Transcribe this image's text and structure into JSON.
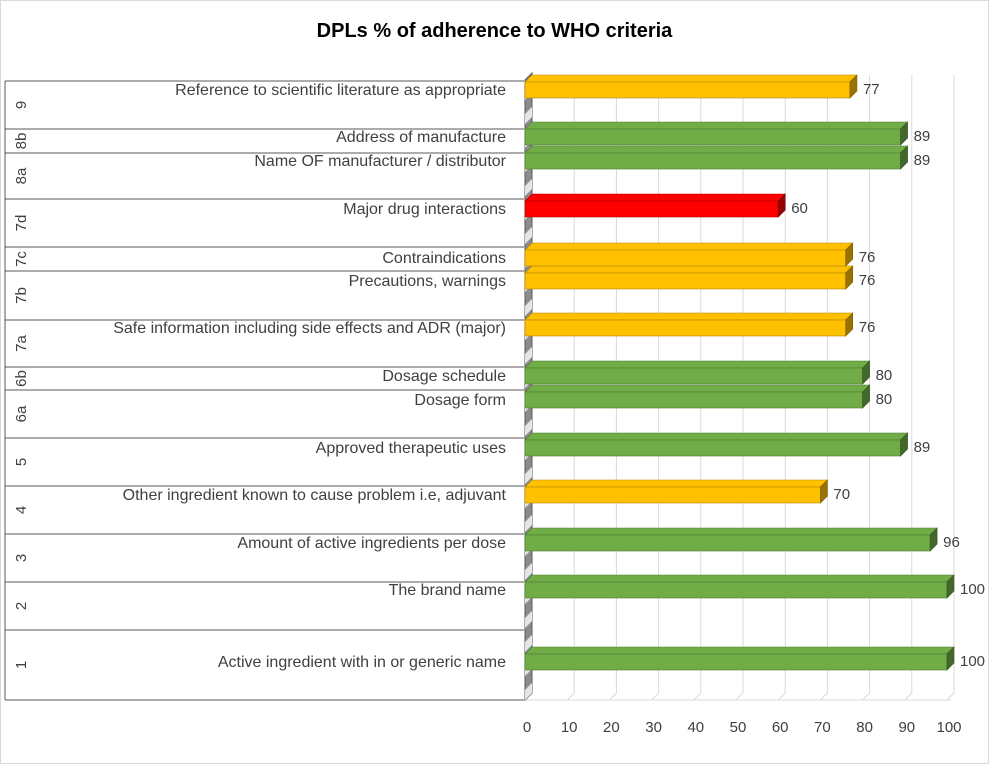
{
  "chart_data": {
    "type": "bar",
    "orientation": "horizontal",
    "title": "DPLs % of adherence to WHO criteria",
    "xlim": [
      0,
      100
    ],
    "x_ticks": [
      "0",
      "10",
      "20",
      "30",
      "40",
      "50",
      "60",
      "70",
      "80",
      "90",
      "100"
    ],
    "grid": true,
    "legend": "none",
    "groups": [
      {
        "id": "1",
        "items": [
          {
            "label": "Active ingredient with in or generic name",
            "value": 100,
            "color": "#70ad47"
          }
        ]
      },
      {
        "id": "2",
        "items": [
          {
            "label": "The brand name",
            "value": 100,
            "color": "#70ad47"
          }
        ]
      },
      {
        "id": "3",
        "items": [
          {
            "label": "Amount of active ingredients per dose",
            "value": 96,
            "color": "#70ad47"
          }
        ]
      },
      {
        "id": "4",
        "items": [
          {
            "label": "Other ingredient known to cause problem i.e, adjuvant",
            "value": 70,
            "color": "#ffc000"
          }
        ]
      },
      {
        "id": "5",
        "items": [
          {
            "label": "Approved therapeutic uses",
            "value": 89,
            "color": "#70ad47"
          }
        ]
      },
      {
        "id": "6a",
        "items": [
          {
            "label": "Dosage form",
            "value": 80,
            "color": "#70ad47"
          }
        ]
      },
      {
        "id": "6b",
        "items": [
          {
            "label": "Dosage schedule",
            "value": 80,
            "color": "#70ad47"
          }
        ]
      },
      {
        "id": "7a",
        "items": [
          {
            "label": "Safe information including side effects and ADR (major)",
            "value": 76,
            "color": "#ffc000"
          }
        ]
      },
      {
        "id": "7b",
        "items": [
          {
            "label": "Precautions, warnings",
            "value": 76,
            "color": "#ffc000"
          }
        ]
      },
      {
        "id": "7c",
        "items": [
          {
            "label": "Contraindications",
            "value": 76,
            "color": "#ffc000"
          }
        ]
      },
      {
        "id": "7d",
        "items": [
          {
            "label": "Major drug interactions",
            "value": 60,
            "color": "#ff0000"
          }
        ]
      },
      {
        "id": "8a",
        "items": [
          {
            "label": "Name OF manufacturer / distributor",
            "value": 89,
            "color": "#70ad47"
          }
        ]
      },
      {
        "id": "8b",
        "items": [
          {
            "label": "Address of manufacture",
            "value": 89,
            "color": "#70ad47"
          }
        ]
      },
      {
        "id": "9",
        "items": [
          {
            "label": "Reference to scientific literature as appropriate",
            "value": 77,
            "color": "#ffc000"
          }
        ]
      }
    ]
  }
}
